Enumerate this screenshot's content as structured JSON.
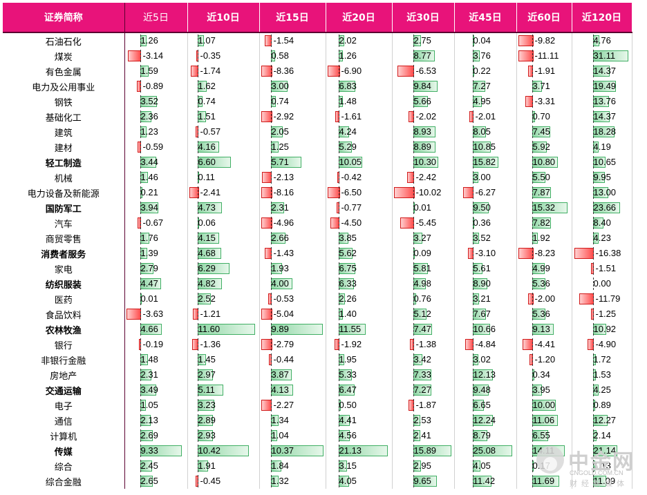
{
  "header": {
    "name": "证券简称",
    "periods": [
      "近5日",
      "近10日",
      "近15日",
      "近20日",
      "近30日",
      "近45日",
      "近60日",
      "近120日"
    ]
  },
  "rows": [
    {
      "name": "石油石化",
      "bold": false,
      "values": [
        "1.26",
        "1.07",
        "-1.54",
        "2.02",
        "2.75",
        "0.04",
        "-9.82",
        "4.76"
      ]
    },
    {
      "name": "煤炭",
      "bold": false,
      "values": [
        "-3.14",
        "-0.35",
        "0.58",
        "1.26",
        "8.77",
        "3.76",
        "-11.11",
        "31.11"
      ]
    },
    {
      "name": "有色金属",
      "bold": false,
      "values": [
        "1.59",
        "-1.74",
        "-8.36",
        "-6.90",
        "-6.53",
        "0.22",
        "-1.91",
        "14.37"
      ]
    },
    {
      "name": "电力及公用事业",
      "bold": false,
      "values": [
        "-0.89",
        "1.62",
        "3.00",
        "6.83",
        "9.84",
        "7.27",
        "3.71",
        "19.49"
      ]
    },
    {
      "name": "钢铁",
      "bold": false,
      "values": [
        "3.52",
        "0.74",
        "0.74",
        "1.48",
        "5.66",
        "4.95",
        "-3.31",
        "13.76"
      ]
    },
    {
      "name": "基础化工",
      "bold": false,
      "values": [
        "2.36",
        "1.51",
        "-2.92",
        "-1.61",
        "-2.02",
        "-2.01",
        "0.70",
        "14.37"
      ]
    },
    {
      "name": "建筑",
      "bold": false,
      "values": [
        "1.23",
        "-0.57",
        "2.05",
        "4.24",
        "8.93",
        "8.05",
        "7.45",
        "18.28"
      ]
    },
    {
      "name": "建材",
      "bold": false,
      "values": [
        "-0.59",
        "4.16",
        "1.25",
        "5.29",
        "8.89",
        "10.85",
        "5.92",
        "4.19"
      ]
    },
    {
      "name": "轻工制造",
      "bold": true,
      "values": [
        "3.44",
        "6.60",
        "5.71",
        "10.05",
        "10.30",
        "15.82",
        "10.80",
        "10.65"
      ]
    },
    {
      "name": "机械",
      "bold": false,
      "values": [
        "1.46",
        "0.11",
        "-2.13",
        "-0.42",
        "-2.42",
        "3.00",
        "5.50",
        "9.95"
      ]
    },
    {
      "name": "电力设备及新能源",
      "bold": false,
      "values": [
        "0.21",
        "-2.41",
        "-8.16",
        "-6.50",
        "-10.02",
        "-6.27",
        "7.87",
        "13.00"
      ]
    },
    {
      "name": "国防军工",
      "bold": true,
      "values": [
        "3.94",
        "4.73",
        "2.31",
        "-0.77",
        "0.01",
        "9.50",
        "15.32",
        "23.66"
      ]
    },
    {
      "name": "汽车",
      "bold": false,
      "values": [
        "-0.67",
        "0.06",
        "-4.96",
        "-4.50",
        "-5.45",
        "0.36",
        "7.82",
        "8.40"
      ]
    },
    {
      "name": "商贸零售",
      "bold": false,
      "values": [
        "1.76",
        "4.15",
        "2.66",
        "3.85",
        "3.27",
        "3.52",
        "1.92",
        "4.23"
      ]
    },
    {
      "name": "消费者服务",
      "bold": true,
      "values": [
        "1.39",
        "4.68",
        "-1.43",
        "5.62",
        "0.09",
        "-3.10",
        "-8.23",
        "-16.38"
      ]
    },
    {
      "name": "家电",
      "bold": false,
      "values": [
        "2.79",
        "6.29",
        "1.93",
        "6.75",
        "5.81",
        "5.61",
        "4.99",
        "-1.51"
      ]
    },
    {
      "name": "纺织服装",
      "bold": true,
      "values": [
        "4.47",
        "4.82",
        "4.00",
        "6.33",
        "4.98",
        "8.90",
        "5.36",
        "0.00"
      ]
    },
    {
      "name": "医药",
      "bold": false,
      "values": [
        "0.01",
        "2.52",
        "-0.53",
        "2.26",
        "0.76",
        "3.21",
        "-2.00",
        "-11.79"
      ]
    },
    {
      "name": "食品饮料",
      "bold": false,
      "values": [
        "-3.63",
        "-1.21",
        "-5.04",
        "1.40",
        "5.12",
        "7.67",
        "5.36",
        "-1.25"
      ]
    },
    {
      "name": "农林牧渔",
      "bold": true,
      "values": [
        "4.66",
        "11.60",
        "9.89",
        "11.55",
        "7.47",
        "10.66",
        "9.13",
        "10.92"
      ]
    },
    {
      "name": "银行",
      "bold": false,
      "values": [
        "-0.19",
        "-1.36",
        "-2.79",
        "-1.92",
        "-1.38",
        "-4.84",
        "-4.41",
        "-4.90"
      ]
    },
    {
      "name": "非银行金融",
      "bold": false,
      "values": [
        "1.48",
        "1.45",
        "-0.44",
        "1.95",
        "3.42",
        "3.02",
        "-1.20",
        "1.72"
      ]
    },
    {
      "name": "房地产",
      "bold": false,
      "values": [
        "2.31",
        "2.97",
        "3.87",
        "5.33",
        "7.33",
        "12.13",
        "0.34",
        "1.53"
      ]
    },
    {
      "name": "交通运输",
      "bold": true,
      "values": [
        "3.49",
        "5.11",
        "4.13",
        "6.47",
        "7.27",
        "9.48",
        "3.95",
        "4.25"
      ]
    },
    {
      "name": "电子",
      "bold": false,
      "values": [
        "1.05",
        "3.23",
        "-2.27",
        "0.50",
        "-1.87",
        "6.65",
        "10.00",
        "0.89"
      ]
    },
    {
      "name": "通信",
      "bold": false,
      "values": [
        "2.13",
        "2.89",
        "1.34",
        "4.41",
        "2.53",
        "12.24",
        "11.06",
        "12.27"
      ]
    },
    {
      "name": "计算机",
      "bold": false,
      "values": [
        "2.69",
        "2.93",
        "1.04",
        "4.56",
        "2.41",
        "8.79",
        "6.55",
        "2.14"
      ]
    },
    {
      "name": "传媒",
      "bold": true,
      "values": [
        "9.33",
        "10.42",
        "10.37",
        "21.13",
        "15.89",
        "25.08",
        "14.11",
        "21.14"
      ]
    },
    {
      "name": "综合",
      "bold": false,
      "values": [
        "2.45",
        "1.91",
        "1.84",
        "3.15",
        "2.95",
        "4.05",
        "0.17",
        "1.13"
      ]
    },
    {
      "name": "综合金融",
      "bold": false,
      "values": [
        "2.65",
        "-0.45",
        "1.32",
        "4.05",
        "9.65",
        "11.42",
        "11.69",
        "11.09"
      ]
    }
  ],
  "watermark": {
    "logo_text": "中金网",
    "domain": "CNGOLD.COM.CN",
    "slogan": "财经新媒体"
  },
  "colors": {
    "header_bg": "#e8137a",
    "positive_bar": "#3fae63",
    "negative_bar": "#d01818"
  }
}
